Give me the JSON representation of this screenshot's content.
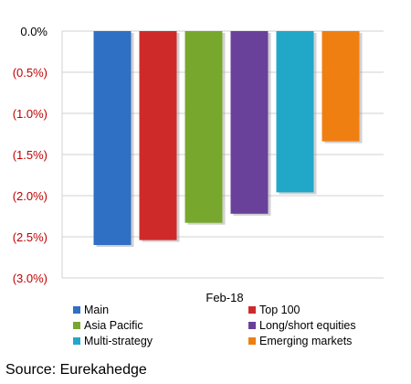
{
  "chart_data": {
    "type": "bar",
    "categories": [
      "Feb-18"
    ],
    "series": [
      {
        "name": "Main",
        "values": [
          -2.6
        ],
        "color": "#2f6fc4"
      },
      {
        "name": "Top 100",
        "values": [
          -2.54
        ],
        "color": "#cf2a2a"
      },
      {
        "name": "Asia Pacific",
        "values": [
          -2.33
        ],
        "color": "#77a82d"
      },
      {
        "name": "Long/short equities",
        "values": [
          -2.22
        ],
        "color": "#6a419a"
      },
      {
        "name": "Multi-strategy",
        "values": [
          -1.96
        ],
        "color": "#21a8c8"
      },
      {
        "name": "Emerging markets",
        "values": [
          -1.34
        ],
        "color": "#f07f12"
      }
    ],
    "y_ticks": [
      "0.0%",
      "(0.5%)",
      "(1.0%)",
      "(1.5%)",
      "(2.0%)",
      "(2.5%)",
      "(3.0%)"
    ],
    "ylim": [
      -3.0,
      0.0
    ],
    "grid": true,
    "legend_position": "bottom",
    "tick_colors": {
      "zero": "#000000",
      "negative": "#c00000"
    }
  },
  "source": "Source: Eurekahedge"
}
